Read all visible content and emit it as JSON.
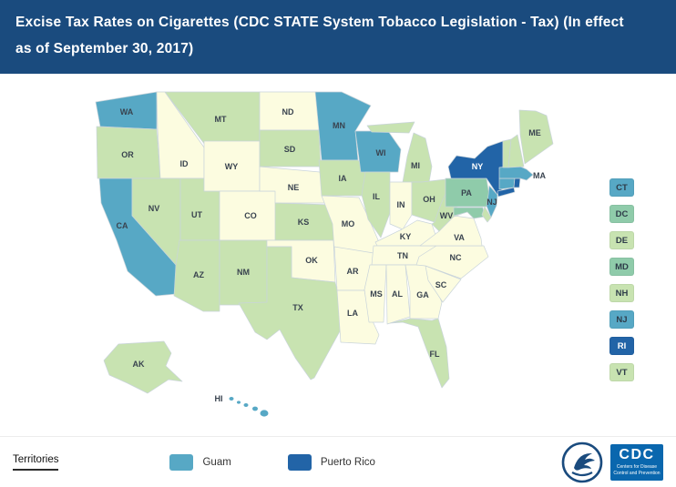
{
  "header": {
    "title": "Excise Tax Rates on Cigarettes (CDC STATE System Tobacco Legislation - Tax) (In effect as of September 30, 2017)",
    "background": "#1A4B7E"
  },
  "palette": {
    "bin_lowest": "#FCFCE0",
    "bin_low": "#C8E3B1",
    "bin_mid": "#8FCBAA",
    "bin_high": "#57A8C5",
    "bin_highest": "#2264A7"
  },
  "map": {
    "border_color": "#C9D4DA",
    "label_color": "#39434F",
    "states": [
      {
        "code": "WA",
        "fill": "#57A8C5"
      },
      {
        "code": "OR",
        "fill": "#C8E3B1"
      },
      {
        "code": "CA",
        "fill": "#57A8C5"
      },
      {
        "code": "ID",
        "fill": "#FCFCE0"
      },
      {
        "code": "NV",
        "fill": "#C8E3B1"
      },
      {
        "code": "UT",
        "fill": "#C8E3B1"
      },
      {
        "code": "AZ",
        "fill": "#C8E3B1"
      },
      {
        "code": "MT",
        "fill": "#C8E3B1"
      },
      {
        "code": "WY",
        "fill": "#FCFCE0"
      },
      {
        "code": "CO",
        "fill": "#FCFCE0"
      },
      {
        "code": "NM",
        "fill": "#C8E3B1"
      },
      {
        "code": "ND",
        "fill": "#FCFCE0"
      },
      {
        "code": "SD",
        "fill": "#C8E3B1"
      },
      {
        "code": "NE",
        "fill": "#FCFCE0"
      },
      {
        "code": "KS",
        "fill": "#C8E3B1"
      },
      {
        "code": "OK",
        "fill": "#FCFCE0"
      },
      {
        "code": "TX",
        "fill": "#C8E3B1"
      },
      {
        "code": "MN",
        "fill": "#57A8C5"
      },
      {
        "code": "IA",
        "fill": "#C8E3B1"
      },
      {
        "code": "MO",
        "fill": "#FCFCE0"
      },
      {
        "code": "AR",
        "fill": "#FCFCE0"
      },
      {
        "code": "LA",
        "fill": "#FCFCE0"
      },
      {
        "code": "WI",
        "fill": "#57A8C5"
      },
      {
        "code": "IL",
        "fill": "#C8E3B1"
      },
      {
        "code": "MI",
        "fill": "#C8E3B1"
      },
      {
        "code": "IN",
        "fill": "#FCFCE0"
      },
      {
        "code": "OH",
        "fill": "#C8E3B1"
      },
      {
        "code": "KY",
        "fill": "#FCFCE0"
      },
      {
        "code": "TN",
        "fill": "#FCFCE0"
      },
      {
        "code": "MS",
        "fill": "#FCFCE0"
      },
      {
        "code": "AL",
        "fill": "#FCFCE0"
      },
      {
        "code": "GA",
        "fill": "#FCFCE0"
      },
      {
        "code": "FL",
        "fill": "#C8E3B1"
      },
      {
        "code": "SC",
        "fill": "#FCFCE0"
      },
      {
        "code": "NC",
        "fill": "#FCFCE0"
      },
      {
        "code": "VA",
        "fill": "#FCFCE0"
      },
      {
        "code": "WV",
        "fill": "#C8E3B1"
      },
      {
        "code": "PA",
        "fill": "#8FCBAA"
      },
      {
        "code": "NY",
        "fill": "#2264A7",
        "label_color": "#FFFFFF"
      },
      {
        "code": "NJ",
        "fill": "#57A8C5"
      },
      {
        "code": "MD",
        "fill": "#8FCBAA"
      },
      {
        "code": "DE",
        "fill": "#C8E3B1"
      },
      {
        "code": "CT",
        "fill": "#57A8C5"
      },
      {
        "code": "RI",
        "fill": "#2264A7"
      },
      {
        "code": "MA",
        "fill": "#57A8C5"
      },
      {
        "code": "VT",
        "fill": "#C8E3B1"
      },
      {
        "code": "NH",
        "fill": "#C8E3B1"
      },
      {
        "code": "ME",
        "fill": "#C8E3B1"
      },
      {
        "code": "AK",
        "fill": "#C8E3B1"
      },
      {
        "code": "HI",
        "fill": "#57A8C5"
      }
    ]
  },
  "side_list": [
    {
      "code": "CT",
      "fill": "#57A8C5"
    },
    {
      "code": "DC",
      "fill": "#8FCBAA"
    },
    {
      "code": "DE",
      "fill": "#C8E3B1"
    },
    {
      "code": "MD",
      "fill": "#8FCBAA"
    },
    {
      "code": "NH",
      "fill": "#C8E3B1"
    },
    {
      "code": "NJ",
      "fill": "#57A8C5"
    },
    {
      "code": "RI",
      "fill": "#2264A7",
      "text": "light"
    },
    {
      "code": "VT",
      "fill": "#C8E3B1"
    }
  ],
  "territories": {
    "label": "Territories",
    "items": [
      {
        "name": "Guam",
        "fill": "#57A8C5"
      },
      {
        "name": "Puerto Rico",
        "fill": "#2264A7"
      }
    ]
  },
  "logos": {
    "cdc_text": "CDC",
    "cdc_subtext": "Centers for Disease Control and Prevention",
    "cdc_blue": "#0A67AE",
    "hhs_blue": "#1A4B7E"
  }
}
